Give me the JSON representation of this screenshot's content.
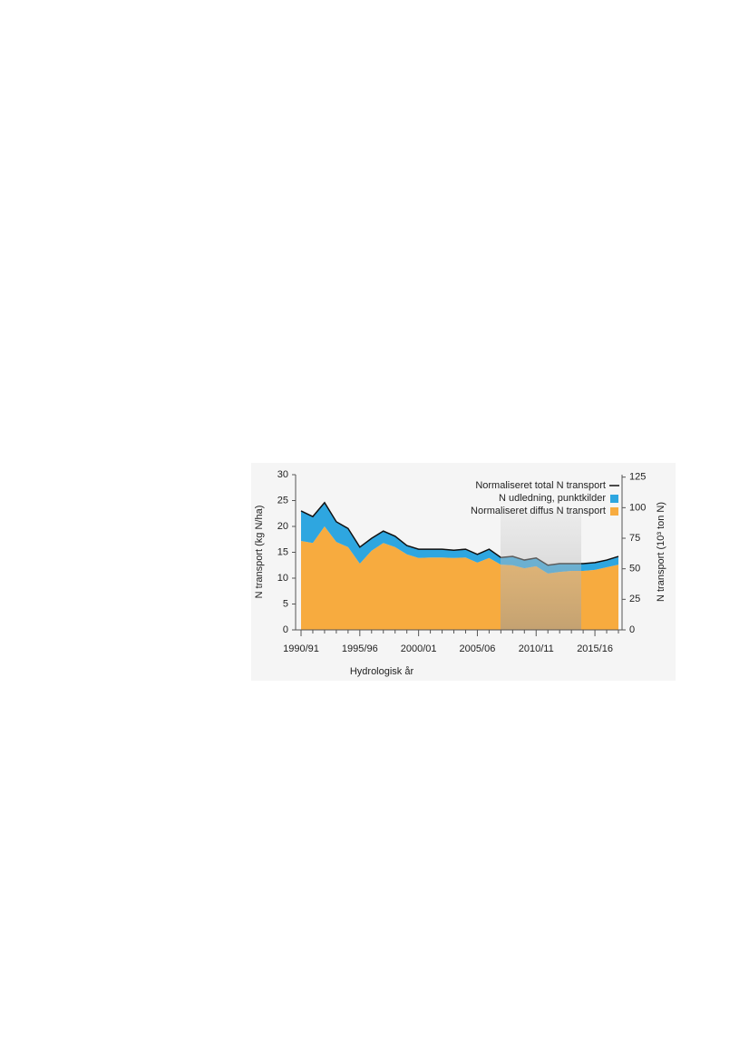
{
  "chart_data": {
    "type": "area",
    "xlabel": "Hydrologisk år",
    "ylabel": "N transport (kg N/ha)",
    "y2label": "N transport (10³ ton N)",
    "categories": [
      "1990/91",
      null,
      null,
      null,
      null,
      "1995/96",
      null,
      null,
      null,
      null,
      "2000/01",
      null,
      null,
      null,
      null,
      "2005/06",
      null,
      null,
      null,
      null,
      "2010/11",
      null,
      null,
      null,
      null,
      "2015/16",
      null,
      null
    ],
    "series": [
      {
        "name": "Normaliseret total N transport",
        "type": "line",
        "color": "#111111",
        "values": [
          23.0,
          21.9,
          24.6,
          20.9,
          19.6,
          16.0,
          17.7,
          19.1,
          18.1,
          16.3,
          15.6,
          15.6,
          15.6,
          15.4,
          15.6,
          14.6,
          15.6,
          14.0,
          14.2,
          13.5,
          13.9,
          12.5,
          12.8,
          12.8,
          12.8,
          13.0,
          13.5,
          14.2
        ]
      },
      {
        "name": "N udledning, punktkilder",
        "type": "stack",
        "color": "#2ea6e0",
        "values": [
          5.8,
          5.1,
          4.6,
          3.9,
          3.6,
          3.2,
          2.4,
          2.3,
          2.1,
          1.7,
          1.7,
          1.6,
          1.6,
          1.5,
          1.6,
          1.6,
          1.7,
          1.4,
          1.7,
          1.6,
          1.6,
          1.6,
          1.6,
          1.4,
          1.4,
          1.4,
          1.4,
          1.6
        ]
      },
      {
        "name": "Normaliseret diffus N transport",
        "type": "stack",
        "color": "#f7ab3f",
        "values": [
          17.2,
          16.8,
          20.0,
          17.0,
          16.0,
          12.8,
          15.3,
          16.8,
          16.0,
          14.6,
          13.9,
          14.0,
          14.0,
          13.9,
          14.0,
          13.0,
          13.9,
          12.6,
          12.5,
          11.9,
          12.3,
          10.9,
          11.2,
          11.4,
          11.4,
          11.6,
          12.1,
          12.6
        ]
      }
    ],
    "ylim": [
      0,
      30
    ],
    "yticks": [
      0,
      5,
      10,
      15,
      20,
      25,
      30
    ],
    "y2lim": [
      0,
      127
    ],
    "y2ticks": [
      0,
      25,
      50,
      75,
      100,
      125
    ],
    "legend": "top-right"
  }
}
